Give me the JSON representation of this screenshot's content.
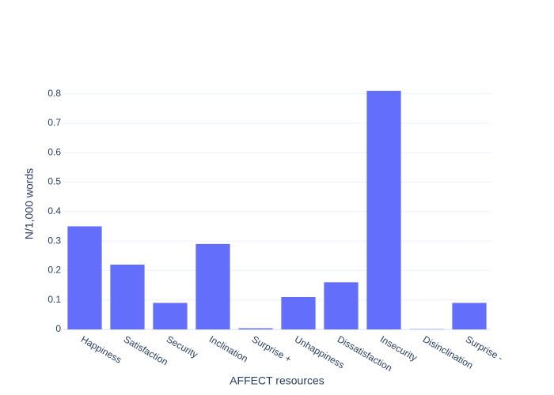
{
  "chart_data": {
    "type": "bar",
    "x_label": "AFFECT resources",
    "y_label": "N/1,000 words",
    "categories": [
      "Happiness",
      "Satisfaction",
      "Security",
      "Inclination",
      "Surprise +",
      "Unhappiness",
      "Dissatisfaction",
      "Insecurity",
      "Disinclination",
      "Surprise -"
    ],
    "values": [
      0.35,
      0.22,
      0.09,
      0.29,
      0.004,
      0.11,
      0.16,
      0.81,
      0.001,
      0.09
    ],
    "color": "#636efa",
    "ylim": [
      0,
      0.85
    ],
    "yticks": [
      0,
      0.1,
      0.2,
      0.3,
      0.4,
      0.5,
      0.6,
      0.7,
      0.8
    ],
    "grid": true
  }
}
